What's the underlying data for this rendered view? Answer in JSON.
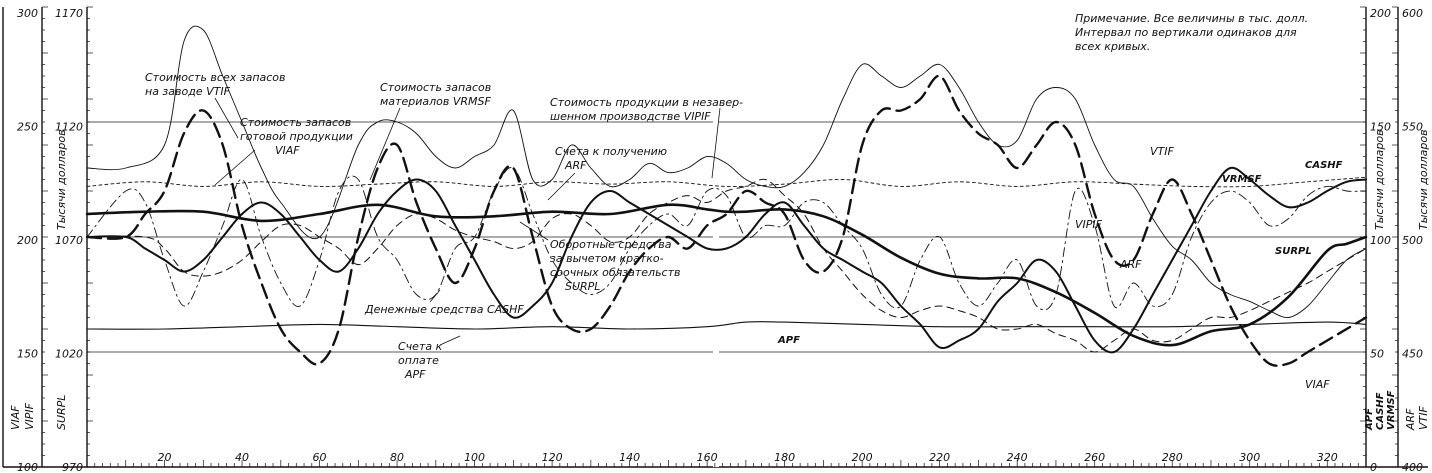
{
  "chart_data": {
    "type": "line",
    "note": {
      "lines": [
        "Примечание.  Все величины в тыс. долл.",
        "Интервал по вертикали одинаков для",
        "всех кривых."
      ]
    },
    "left_axes": {
      "outer": {
        "ticks": [
          "300",
          "250",
          "200",
          "150",
          "100"
        ],
        "labels": [
          "VIAF",
          "VIPIF"
        ]
      },
      "inner": {
        "ticks": [
          "1170",
          "1120",
          "1070",
          "1020",
          "970"
        ],
        "labels": [
          "Тысячи долларов",
          "SURPL"
        ]
      }
    },
    "right_axes": {
      "inner": {
        "ticks": [
          "200",
          "150",
          "100",
          "50",
          "0"
        ],
        "labels": [
          "Тысячи долларов",
          "APF",
          "CASHF",
          "VRMSF"
        ]
      },
      "outer": {
        "ticks": [
          "600",
          "550",
          "500",
          "450",
          "400"
        ],
        "labels": [
          "Тысячи долларов",
          "ARF",
          "VTIF"
        ]
      }
    },
    "x_ticks_left": [
      "20",
      "40",
      "60",
      "80",
      "100",
      "120",
      "140",
      "160"
    ],
    "x_ticks_right": [
      "180",
      "200",
      "220",
      "240",
      "260",
      "280",
      "300",
      "320"
    ],
    "x_range": [
      0,
      330
    ],
    "annotations": [
      {
        "lines": [
          "Стоимость всех запасов",
          "на заводе VTIF"
        ]
      },
      {
        "lines": [
          "Стоимость запасов",
          "готовой продукции",
          "VIAF"
        ]
      },
      {
        "lines": [
          "Стоимость запасов",
          "материалов VRMSF"
        ]
      },
      {
        "lines": [
          "Стоимость продукции в незавер-",
          "шенном производстве VIPIF"
        ]
      },
      {
        "lines": [
          "Счета к получению",
          "ARF"
        ]
      },
      {
        "lines": [
          "Оборотные средства",
          "за вычетом кратко-",
          "срочных обязательств",
          "SURPL"
        ]
      },
      {
        "lines": [
          "Денежные средства CASHF"
        ]
      },
      {
        "lines": [
          "Счета к",
          "оплате",
          "APF"
        ]
      }
    ],
    "right_labels": [
      "VTIF",
      "VRMSF",
      "CASHF",
      "VIPIF",
      "ARF",
      "SURPL",
      "APF",
      "VIAF"
    ],
    "grid_levels": [
      250,
      200,
      150
    ],
    "series": [
      {
        "name": "VTIF",
        "x": [
          0,
          10,
          20,
          25,
          30,
          35,
          40,
          45,
          50,
          60,
          70,
          75,
          80,
          85,
          90,
          95,
          100,
          105,
          110,
          115,
          120,
          125,
          130,
          135,
          140,
          145,
          150,
          155,
          160,
          165,
          170,
          175,
          180,
          185,
          190,
          195,
          200,
          205,
          210,
          215,
          220,
          225,
          230,
          235,
          240,
          245,
          250,
          255,
          260,
          265,
          270,
          275,
          280,
          285,
          290,
          295,
          300,
          305,
          310,
          315,
          320,
          325,
          330
        ],
        "y": [
          230,
          230,
          240,
          285,
          290,
          270,
          250,
          230,
          215,
          200,
          240,
          250,
          250,
          245,
          235,
          230,
          235,
          240,
          255,
          225,
          225,
          240,
          230,
          222,
          225,
          232,
          228,
          230,
          235,
          232,
          225,
          222,
          222,
          228,
          240,
          260,
          275,
          270,
          265,
          270,
          275,
          265,
          250,
          240,
          242,
          260,
          265,
          260,
          240,
          225,
          222,
          208,
          196,
          190,
          180,
          175,
          172,
          168,
          165,
          170,
          180,
          190,
          195
        ]
      },
      {
        "name": "VIAF",
        "x": [
          0,
          10,
          15,
          20,
          25,
          30,
          35,
          40,
          45,
          50,
          55,
          60,
          65,
          70,
          75,
          80,
          85,
          90,
          95,
          100,
          105,
          110,
          115,
          120,
          125,
          130,
          135,
          140,
          145,
          150,
          155,
          160,
          165,
          170,
          175,
          180,
          185,
          190,
          195,
          200,
          205,
          210,
          215,
          220,
          225,
          230,
          235,
          240,
          245,
          250,
          255,
          260,
          265,
          270,
          275,
          280,
          285,
          290,
          295,
          300,
          305,
          310,
          315,
          320,
          325,
          330
        ],
        "y": [
          200,
          200,
          210,
          220,
          245,
          255,
          240,
          205,
          180,
          160,
          150,
          145,
          160,
          200,
          230,
          240,
          215,
          195,
          180,
          195,
          220,
          230,
          200,
          170,
          160,
          160,
          170,
          185,
          195,
          200,
          195,
          205,
          210,
          220,
          215,
          210,
          190,
          185,
          200,
          240,
          255,
          255,
          260,
          270,
          255,
          245,
          240,
          230,
          240,
          250,
          240,
          210,
          190,
          190,
          210,
          225,
          210,
          190,
          170,
          155,
          145,
          145,
          150,
          155,
          160,
          165
        ]
      },
      {
        "name": "VRMSF",
        "x": [
          0,
          15,
          30,
          45,
          60,
          75,
          90,
          105,
          120,
          135,
          150,
          165,
          180,
          195,
          210,
          225,
          240,
          255,
          270,
          285,
          300,
          315,
          330
        ],
        "y": [
          222,
          224,
          222,
          224,
          222,
          223,
          224,
          222,
          224,
          223,
          224,
          222,
          223,
          225,
          222,
          224,
          222,
          224,
          223,
          222,
          222,
          224,
          226
        ]
      },
      {
        "name": "VIPIF",
        "x": [
          0,
          15,
          20,
          25,
          30,
          35,
          40,
          45,
          50,
          55,
          60,
          65,
          70,
          75,
          80,
          85,
          90,
          95,
          100,
          105,
          110,
          115,
          120,
          125,
          130,
          135,
          140,
          145,
          150,
          155,
          160,
          165,
          170,
          175,
          180,
          185,
          190,
          195,
          200,
          205,
          210,
          215,
          220,
          225,
          230,
          235,
          240,
          245,
          250,
          255,
          260,
          265,
          270,
          275,
          280,
          285,
          290,
          295,
          300,
          305,
          310,
          315,
          320,
          325,
          330
        ],
        "y": [
          200,
          200,
          195,
          185,
          183,
          185,
          190,
          198,
          205,
          205,
          200,
          195,
          188,
          195,
          205,
          210,
          208,
          203,
          200,
          198,
          195,
          198,
          208,
          210,
          205,
          198,
          200,
          210,
          215,
          218,
          215,
          220,
          222,
          225,
          218,
          210,
          195,
          185,
          175,
          168,
          165,
          168,
          170,
          168,
          165,
          160,
          160,
          162,
          158,
          155,
          150,
          155,
          160,
          155,
          155,
          160,
          165,
          165,
          168,
          172,
          176,
          180,
          185,
          190,
          195
        ]
      },
      {
        "name": "SURPL",
        "x": [
          0,
          15,
          30,
          45,
          60,
          75,
          90,
          105,
          120,
          135,
          150,
          160,
          165,
          170,
          180,
          190,
          200,
          210,
          220,
          230,
          240,
          250,
          260,
          270,
          280,
          290,
          300,
          310,
          320,
          325,
          330
        ],
        "y": [
          1080,
          1081,
          1081,
          1077,
          1080,
          1084,
          1079,
          1079,
          1081,
          1080,
          1084,
          1082,
          1081,
          1081,
          1082,
          1079,
          1071,
          1061,
          1054,
          1052,
          1052,
          1046,
          1037,
          1027,
          1023,
          1029,
          1032,
          1044,
          1064,
          1067,
          1070
        ]
      },
      {
        "name": "ARF",
        "x": [
          0,
          10,
          15,
          20,
          25,
          30,
          35,
          40,
          45,
          50,
          55,
          60,
          65,
          70,
          75,
          80,
          85,
          90,
          95,
          100,
          105,
          110,
          115,
          120,
          125,
          130,
          135,
          140,
          145,
          150,
          155,
          160,
          165,
          170,
          175,
          180,
          185,
          190,
          195,
          200,
          205,
          210,
          215,
          220,
          225,
          230,
          235,
          240,
          245,
          250,
          255,
          260,
          265,
          270,
          275,
          280,
          285,
          290,
          295,
          300,
          305,
          310,
          315,
          320,
          325,
          330
        ],
        "y": [
          500,
          520,
          515,
          490,
          470,
          485,
          505,
          525,
          500,
          480,
          470,
          490,
          520,
          525,
          500,
          490,
          475,
          475,
          495,
          500,
          520,
          530,
          510,
          490,
          480,
          475,
          480,
          495,
          505,
          510,
          505,
          520,
          518,
          500,
          505,
          505,
          515,
          515,
          505,
          495,
          475,
          470,
          490,
          500,
          480,
          470,
          480,
          490,
          470,
          475,
          520,
          505,
          470,
          480,
          470,
          475,
          500,
          515,
          520,
          515,
          505,
          508,
          518,
          522,
          520,
          520
        ]
      },
      {
        "name": "CASHF",
        "x": [
          0,
          10,
          15,
          20,
          25,
          30,
          35,
          40,
          45,
          50,
          55,
          60,
          65,
          70,
          75,
          80,
          85,
          90,
          95,
          100,
          105,
          110,
          115,
          120,
          125,
          130,
          135,
          140,
          145,
          150,
          155,
          160,
          165,
          170,
          175,
          180,
          185,
          190,
          195,
          200,
          205,
          210,
          215,
          220,
          225,
          230,
          235,
          240,
          245,
          250,
          255,
          260,
          265,
          270,
          275,
          280,
          285,
          290,
          295,
          300,
          305,
          310,
          315,
          320,
          325,
          330
        ],
        "y": [
          100,
          100,
          95,
          90,
          85,
          90,
          100,
          110,
          115,
          110,
          100,
          90,
          85,
          95,
          110,
          120,
          125,
          120,
          105,
          90,
          75,
          65,
          70,
          80,
          100,
          115,
          120,
          115,
          110,
          105,
          100,
          95,
          95,
          100,
          110,
          115,
          105,
          95,
          90,
          85,
          80,
          70,
          62,
          52,
          55,
          60,
          72,
          80,
          90,
          85,
          70,
          55,
          50,
          60,
          75,
          90,
          105,
          120,
          130,
          125,
          118,
          113,
          115,
          120,
          124,
          125
        ]
      },
      {
        "name": "APF",
        "x": [
          0,
          20,
          40,
          60,
          80,
          100,
          120,
          140,
          160,
          170,
          180,
          200,
          220,
          240,
          260,
          280,
          300,
          320,
          330
        ],
        "y": [
          60,
          60,
          61,
          62,
          61,
          60,
          61,
          60,
          61,
          63,
          63,
          62,
          61,
          61,
          61,
          61,
          62,
          63,
          62
        ]
      }
    ]
  }
}
